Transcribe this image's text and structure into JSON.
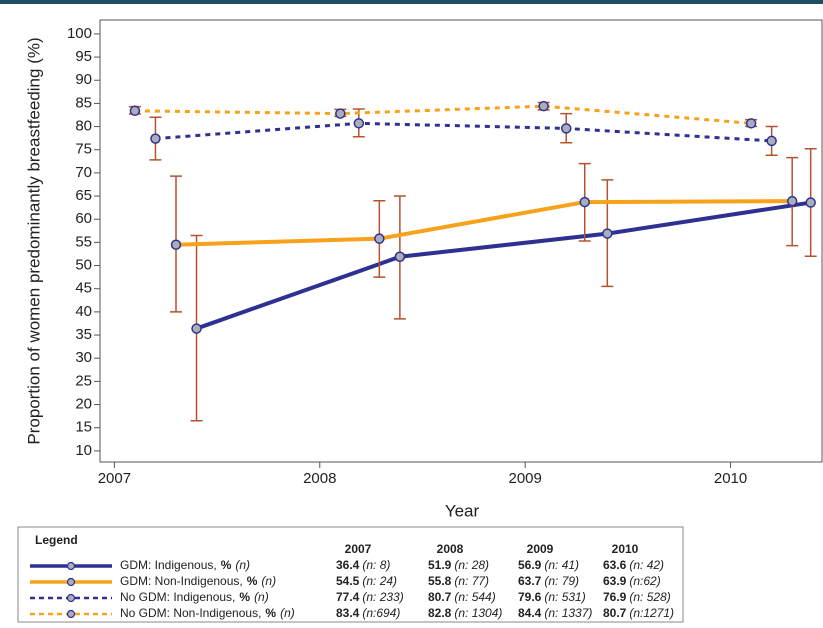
{
  "chart_data": {
    "type": "line",
    "y_label": "Proportion of women predominantly breastfeeding (%)",
    "x_label": "Year",
    "xlim": [
      2006.93,
      2010.45
    ],
    "xticks": [
      2007,
      2008,
      2009,
      2010
    ],
    "ylim": [
      7.6,
      103
    ],
    "yticks": [
      10,
      15,
      20,
      25,
      30,
      35,
      40,
      45,
      50,
      55,
      60,
      65,
      70,
      75,
      80,
      85,
      90,
      95,
      100
    ],
    "error_color": "#b5532d",
    "legend_title": "Legend",
    "legend_unit": "%",
    "legend_n": "(n)",
    "series": [
      {
        "name": "GDM: Indigenous,",
        "color": "#2e3192",
        "line_style": "solid",
        "x": [
          2007.4,
          2008.39,
          2009.4,
          2010.39
        ],
        "values": [
          36.4,
          51.9,
          56.9,
          63.6
        ],
        "lower": [
          16.5,
          38.5,
          45.5,
          52
        ],
        "upper": [
          56.5,
          65,
          68.5,
          75.2
        ],
        "n_labels": [
          "(n: 8)",
          "(n: 28)",
          "(n: 41)",
          "(n: 42)"
        ]
      },
      {
        "name": "GDM: Non-Indigenous,",
        "color": "#f7a21b",
        "line_style": "solid",
        "x": [
          2007.3,
          2008.29,
          2009.29,
          2010.3
        ],
        "values": [
          54.5,
          55.8,
          63.7,
          63.9
        ],
        "lower": [
          40,
          47.5,
          55.3,
          54.3
        ],
        "upper": [
          69.3,
          64,
          72,
          73.3
        ],
        "n_labels": [
          "(n: 24)",
          "(n: 77)",
          "(n: 79)",
          "(n:62)"
        ]
      },
      {
        "name": "No GDM: Indigenous,",
        "color": "#2e3192",
        "line_style": "dashed",
        "x": [
          2007.2,
          2008.19,
          2009.2,
          2010.2
        ],
        "values": [
          77.4,
          80.7,
          79.6,
          76.9
        ],
        "lower": [
          72.8,
          77.8,
          76.5,
          73.8
        ],
        "upper": [
          82,
          83.8,
          82.8,
          80
        ],
        "n_labels": [
          "(n: 233)",
          "(n: 544)",
          "(n: 531)",
          "(n: 528)"
        ]
      },
      {
        "name": "No GDM: Non-Indigenous,",
        "color": "#f7a21b",
        "line_style": "dashed",
        "x": [
          2007.1,
          2008.1,
          2009.09,
          2010.1
        ],
        "values": [
          83.4,
          82.8,
          84.4,
          80.7
        ],
        "lower": [
          82.7,
          82.2,
          83.6,
          80
        ],
        "upper": [
          84.3,
          83.7,
          85.2,
          81.5
        ],
        "n_labels": [
          "(n:694)",
          "(n: 1304)",
          "(n: 1337)",
          "(n:1271)"
        ]
      }
    ]
  }
}
